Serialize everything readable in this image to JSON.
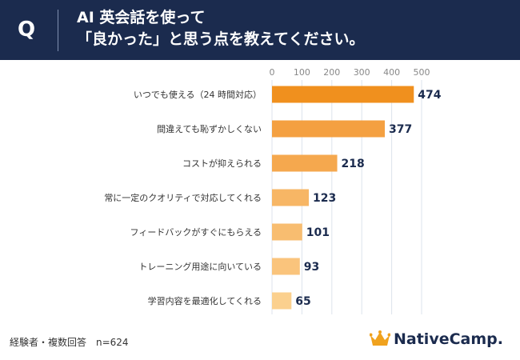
{
  "header": {
    "q_label": "Q",
    "title_line1": "AI 英会話を使って",
    "title_line2": "「良かった」と思う点を教えてください。"
  },
  "chart_data": {
    "type": "bar",
    "orientation": "horizontal",
    "categories": [
      "いつでも使える（24 時間対応）",
      "間違えても恥ずかしくない",
      "コストが抑えられる",
      "常に一定のクオリティで対応してくれる",
      "フィードバックがすぐにもらえる",
      "トレーニング用途に向いている",
      "学習内容を最適化してくれる"
    ],
    "values": [
      474,
      377,
      218,
      123,
      101,
      93,
      65
    ],
    "xlim": [
      0,
      500
    ],
    "xticks": [
      0,
      100,
      200,
      300,
      400,
      500
    ],
    "grid": true,
    "bar_colors": [
      "#f0901e",
      "#f4a041",
      "#f5a84e",
      "#f7b665",
      "#f8bd70",
      "#fac47c",
      "#fbd08e"
    ]
  },
  "footer": {
    "note": "経験者・複数回答　n=624",
    "logo_text": "NativeCamp."
  },
  "colors": {
    "header_bg": "#1b2b4e",
    "value_text": "#1b2b4e",
    "grid": "#dde3ec"
  }
}
